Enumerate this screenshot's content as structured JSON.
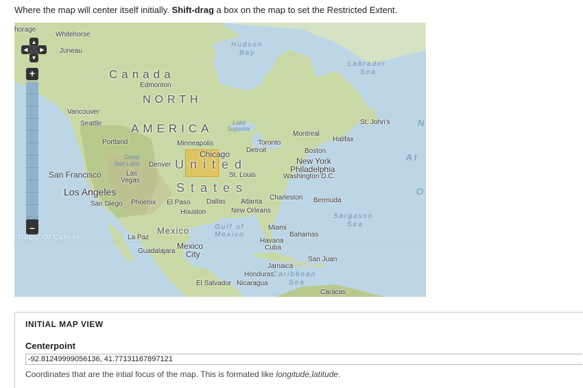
{
  "intro": {
    "text_before": "Where the map will center itself initially. ",
    "bold": "Shift-drag",
    "text_after": " a box on the map to set the Restricted Extent."
  },
  "map": {
    "controls": {
      "pan_up": "▲",
      "pan_left": "◀",
      "pan_right": "▶",
      "pan_down": "▼",
      "zoom_in": "+",
      "zoom_out": "–"
    },
    "labels": {
      "anchorage": "horage",
      "whitehorse": "Whitehorse",
      "juneau": "Juneau",
      "canada": "Canada",
      "edmonton": "Edmonton",
      "north": "NORTH",
      "america": "AMERICA",
      "hudson_bay_1": "Hudson",
      "hudson_bay_2": "Bay",
      "labrador_1": "Labrador",
      "labrador_2": "Sea",
      "vancouver": "Vancouver",
      "seattle": "Seattle",
      "portland": "Portland",
      "lake_superior_1": "Lake",
      "lake_superior_2": "Superior",
      "minneapolis": "Minneapolis",
      "montreal": "Montreal",
      "toronto": "Toronto",
      "detroit": "Detroit",
      "halifax": "Halifax",
      "st_johns": "St. John's",
      "great_salt_lake_1": "Great",
      "great_salt_lake_2": "Salt Lake",
      "denver": "Denver",
      "chicago": "Chicago",
      "boston": "Boston",
      "new_york": "New York",
      "united": "United",
      "st_louis": "St. Louis",
      "philadelphia": "Philadelphia",
      "washington": "Washington D.C.",
      "san_francisco": "San Francisco",
      "las_vegas_1": "Las",
      "las_vegas_2": "Vegas",
      "los_angeles": "Los Angeles",
      "states": "States",
      "san_diego": "San Diego",
      "phoenix": "Phoenix",
      "el_paso": "El Paso",
      "dallas": "Dallas",
      "atlanta": "Atlanta",
      "charleston": "Charleston",
      "bermuda": "Bermuda",
      "houston": "Houston",
      "new_orleans": "New Orleans",
      "sargasso_1": "Sargasso",
      "sargasso_2": "Sea",
      "tropic": "Tropic Of Cancer",
      "la_paz": "La Paz",
      "mexico_country": "Mexico",
      "gulf_1": "Gulf of",
      "gulf_2": "Mexico",
      "miami": "Miami",
      "bahamas": "Bahamas",
      "havana": "Havana",
      "cuba": "Cuba",
      "guadalajara": "Guadalajara",
      "mexico_city_1": "Mexico",
      "mexico_city_2": "City",
      "san_juan": "San Juan",
      "jamaica": "Jamaica",
      "honduras": "Honduras",
      "caribbean": "Caribbean",
      "sea": "Sea",
      "el_salvador": "El Salvador",
      "nicaragua": "Nicaragua",
      "caracas": "Caracas",
      "atlantic_n": "N",
      "atlantic_at": "A t",
      "atlantic_o": "O"
    }
  },
  "section": {
    "title": "INITIAL MAP VIEW",
    "field_label": "Centerpoint",
    "field_value": "-92.81249999056136, 41.77131167897121",
    "description_before": "Coordinates that are the intial focus of the map. This is formated like ",
    "description_italic": "longitude,latitude",
    "description_after": "."
  },
  "colors": {
    "ocean": "#bcd6e6",
    "land": "#c9d9a6",
    "extent_fill": "#f0b428"
  }
}
